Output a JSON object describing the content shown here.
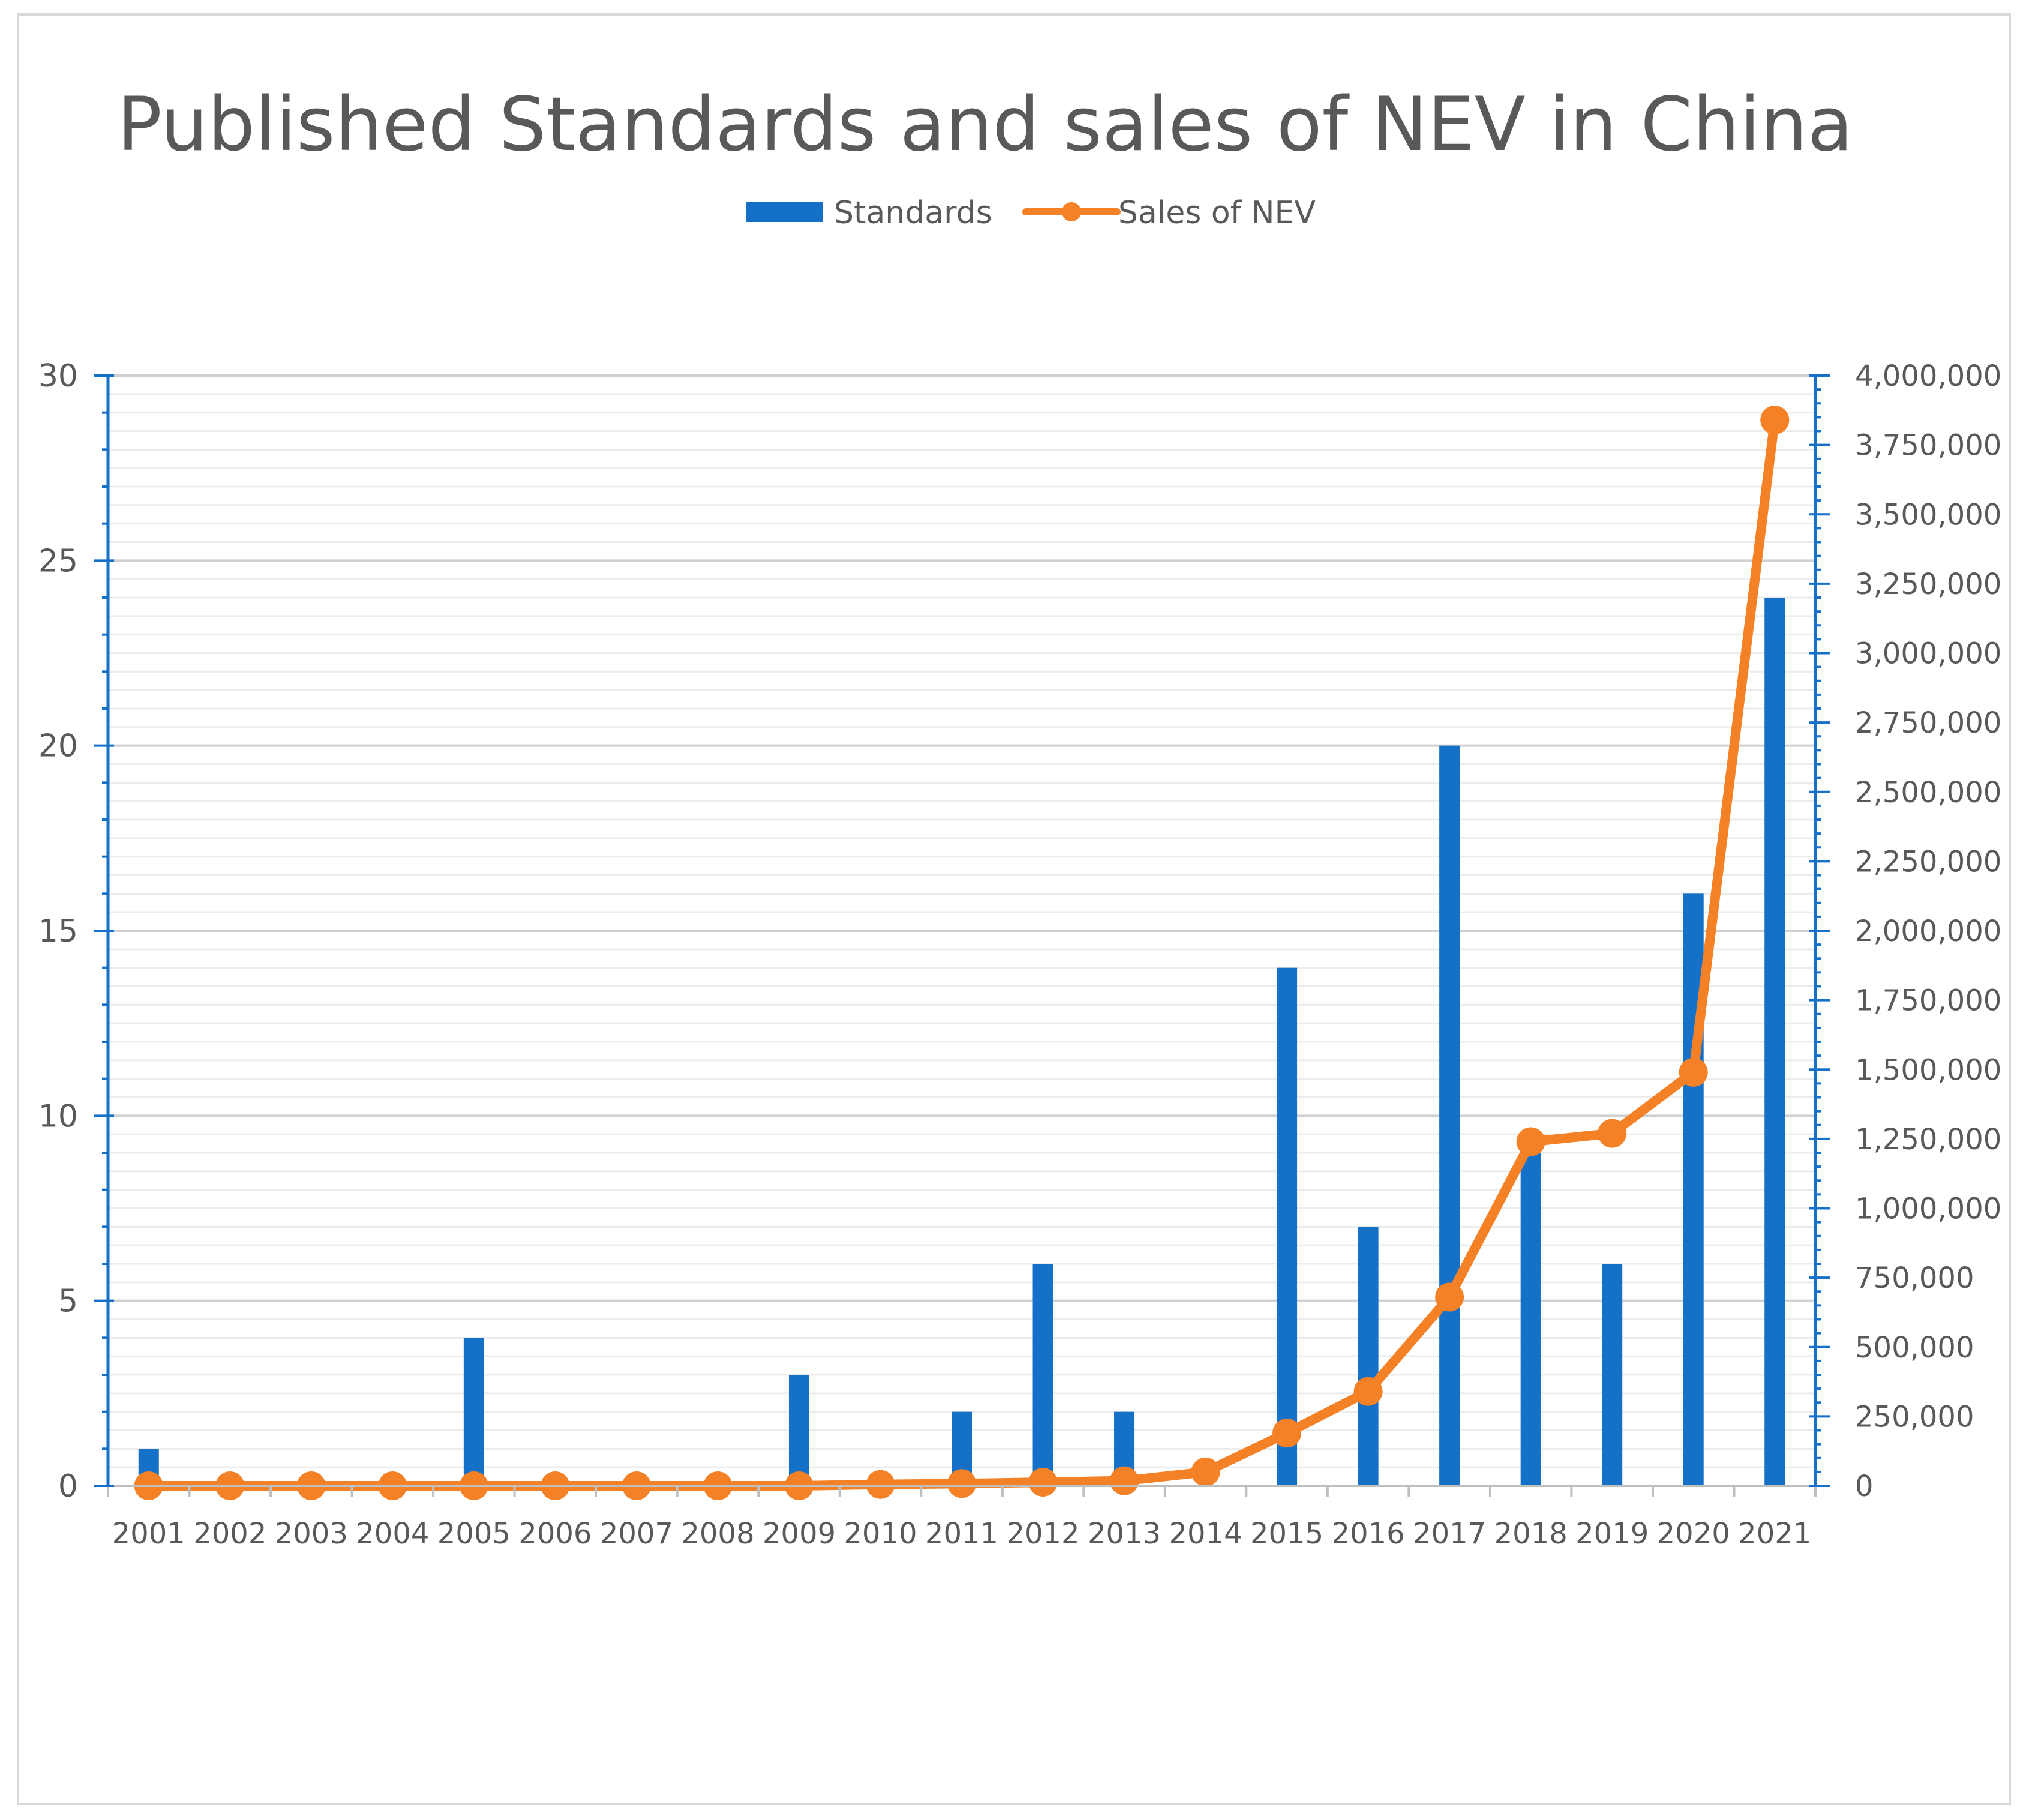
{
  "chart_data": {
    "type": "bar+line",
    "title": "Published Standards and sales of NEV in China",
    "categories": [
      "2001",
      "2002",
      "2003",
      "2004",
      "2005",
      "2006",
      "2007",
      "2008",
      "2009",
      "2010",
      "2011",
      "2012",
      "2013",
      "2014",
      "2015",
      "2016",
      "2017",
      "2018",
      "2019",
      "2020",
      "2021"
    ],
    "series": [
      {
        "name": "Standards",
        "type": "bar",
        "axis": "left",
        "color": "#1570C8",
        "values": [
          1,
          0,
          0,
          0,
          4,
          0,
          0,
          0,
          3,
          0,
          2,
          6,
          2,
          0,
          14,
          7,
          20,
          9,
          6,
          16,
          24
        ]
      },
      {
        "name": "Sales of NEV",
        "type": "line",
        "axis": "right",
        "color": "#F58126",
        "values": [
          0,
          0,
          0,
          0,
          0,
          0,
          0,
          0,
          0,
          5000,
          8000,
          13000,
          18000,
          50000,
          190000,
          340000,
          680000,
          1240000,
          1270000,
          1490000,
          3840000
        ]
      }
    ],
    "y_left": {
      "range": [
        0,
        30
      ],
      "ticks": [
        "0",
        "5",
        "10",
        "15",
        "20",
        "25",
        "30"
      ]
    },
    "y_right": {
      "range": [
        0,
        4000000
      ],
      "ticks": [
        "0",
        "250,000",
        "500,000",
        "750,000",
        "1,000,000",
        "1,250,000",
        "1,500,000",
        "1,750,000",
        "2,000,000",
        "2,250,000",
        "2,500,000",
        "2,750,000",
        "3,000,000",
        "3,250,000",
        "3,500,000",
        "3,750,000",
        "4,000,000"
      ]
    },
    "grid": true,
    "legend_position": "top-center"
  }
}
